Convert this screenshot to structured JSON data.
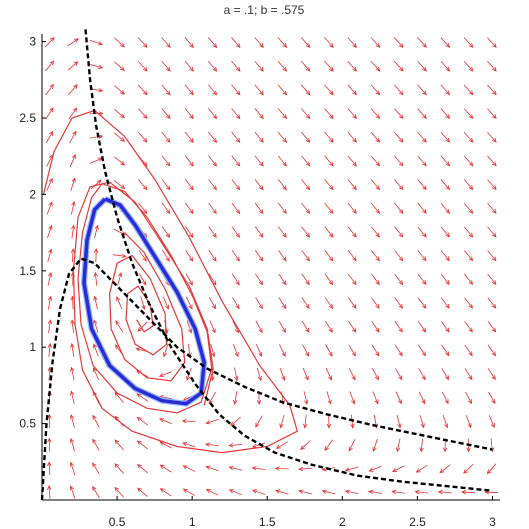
{
  "chart_data": {
    "type": "line",
    "title": "a = .1;   b = .575",
    "xlim": [
      0,
      3.05
    ],
    "ylim": [
      0,
      3.05
    ],
    "x_ticks": [
      {
        "value": 0.5,
        "label": "0.5"
      },
      {
        "value": 1,
        "label": "1"
      },
      {
        "value": 1.5,
        "label": "1.5"
      },
      {
        "value": 2,
        "label": "2"
      },
      {
        "value": 2.5,
        "label": "2.5"
      },
      {
        "value": 3,
        "label": "3"
      }
    ],
    "y_ticks": [
      {
        "value": 0.5,
        "label": "0.5"
      },
      {
        "value": 1,
        "label": "1"
      },
      {
        "value": 1.5,
        "label": "1.5"
      },
      {
        "value": 2,
        "label": "2"
      },
      {
        "value": 2.5,
        "label": "2.5"
      },
      {
        "value": 3,
        "label": "3"
      }
    ],
    "grid": false,
    "colors": {
      "field": "#e8302f",
      "trajectory": "#e23a3a",
      "limit_cycle": "#2b2bd6",
      "limit_cycle_edge": "#8fb4ff",
      "nullcline": "#000000"
    },
    "series": [
      {
        "role": "nullcline-1",
        "style": "dashed",
        "points": [
          [
            0.29,
            3.08
          ],
          [
            0.32,
            2.75
          ],
          [
            0.36,
            2.45
          ],
          [
            0.42,
            2.15
          ],
          [
            0.5,
            1.85
          ],
          [
            0.6,
            1.55
          ],
          [
            0.72,
            1.27
          ],
          [
            0.86,
            1.0
          ],
          [
            1.02,
            0.76
          ],
          [
            1.18,
            0.56
          ],
          [
            1.35,
            0.42
          ],
          [
            1.55,
            0.31
          ],
          [
            1.8,
            0.23
          ],
          [
            2.1,
            0.16
          ],
          [
            2.4,
            0.12
          ],
          [
            2.7,
            0.09
          ],
          [
            3.0,
            0.06
          ]
        ]
      },
      {
        "role": "nullcline-2",
        "style": "dashed",
        "points": [
          [
            0.0,
            0.0
          ],
          [
            0.03,
            0.5
          ],
          [
            0.07,
            0.9
          ],
          [
            0.12,
            1.25
          ],
          [
            0.18,
            1.48
          ],
          [
            0.26,
            1.58
          ],
          [
            0.35,
            1.55
          ],
          [
            0.5,
            1.4
          ],
          [
            0.7,
            1.2
          ],
          [
            0.9,
            1.0
          ],
          [
            1.1,
            0.86
          ],
          [
            1.35,
            0.74
          ],
          [
            1.6,
            0.64
          ],
          [
            1.9,
            0.56
          ],
          [
            2.2,
            0.49
          ],
          [
            2.5,
            0.43
          ],
          [
            2.8,
            0.37
          ],
          [
            3.0,
            0.33
          ]
        ]
      },
      {
        "role": "limit-cycle",
        "style": "solid",
        "points": [
          [
            0.42,
            1.97
          ],
          [
            0.52,
            1.93
          ],
          [
            0.62,
            1.8
          ],
          [
            0.76,
            1.58
          ],
          [
            0.9,
            1.36
          ],
          [
            1.02,
            1.12
          ],
          [
            1.08,
            0.9
          ],
          [
            1.06,
            0.7
          ],
          [
            0.96,
            0.63
          ],
          [
            0.8,
            0.65
          ],
          [
            0.62,
            0.73
          ],
          [
            0.45,
            0.88
          ],
          [
            0.33,
            1.12
          ],
          [
            0.28,
            1.42
          ],
          [
            0.3,
            1.7
          ],
          [
            0.35,
            1.9
          ],
          [
            0.42,
            1.97
          ]
        ]
      },
      {
        "role": "trajectory-outer",
        "style": "solid",
        "points": [
          [
            0.01,
            2.0
          ],
          [
            0.08,
            2.28
          ],
          [
            0.2,
            2.5
          ],
          [
            0.35,
            2.55
          ],
          [
            0.55,
            2.38
          ],
          [
            0.75,
            2.1
          ],
          [
            0.98,
            1.72
          ],
          [
            1.2,
            1.3
          ],
          [
            1.45,
            0.88
          ],
          [
            1.65,
            0.62
          ],
          [
            1.7,
            0.45
          ],
          [
            1.5,
            0.35
          ],
          [
            1.2,
            0.31
          ],
          [
            0.9,
            0.35
          ],
          [
            0.6,
            0.45
          ],
          [
            0.4,
            0.6
          ],
          [
            0.27,
            0.85
          ],
          [
            0.22,
            1.15
          ],
          [
            0.21,
            1.5
          ],
          [
            0.24,
            1.85
          ],
          [
            0.32,
            2.05
          ],
          [
            0.45,
            2.08
          ],
          [
            0.62,
            1.95
          ],
          [
            0.8,
            1.68
          ],
          [
            0.98,
            1.4
          ],
          [
            1.1,
            1.12
          ],
          [
            1.14,
            0.86
          ],
          [
            1.08,
            0.62
          ]
        ]
      },
      {
        "role": "trajectory-middle",
        "style": "solid",
        "points": [
          [
            0.4,
            2.07
          ],
          [
            0.55,
            2.02
          ],
          [
            0.7,
            1.85
          ],
          [
            0.86,
            1.6
          ],
          [
            1.0,
            1.34
          ],
          [
            1.1,
            1.1
          ],
          [
            1.13,
            0.86
          ],
          [
            1.06,
            0.64
          ],
          [
            0.9,
            0.57
          ],
          [
            0.7,
            0.6
          ],
          [
            0.5,
            0.7
          ],
          [
            0.34,
            0.88
          ],
          [
            0.26,
            1.15
          ],
          [
            0.24,
            1.45
          ],
          [
            0.27,
            1.75
          ],
          [
            0.33,
            1.98
          ],
          [
            0.4,
            2.07
          ]
        ]
      },
      {
        "role": "trajectory-inner-spiral",
        "style": "solid",
        "points": [
          [
            0.55,
            1.75
          ],
          [
            0.68,
            1.62
          ],
          [
            0.82,
            1.38
          ],
          [
            0.93,
            1.12
          ],
          [
            0.95,
            0.9
          ],
          [
            0.86,
            0.78
          ],
          [
            0.7,
            0.8
          ],
          [
            0.55,
            0.92
          ],
          [
            0.46,
            1.12
          ],
          [
            0.45,
            1.35
          ],
          [
            0.5,
            1.55
          ],
          [
            0.6,
            1.6
          ],
          [
            0.72,
            1.45
          ],
          [
            0.82,
            1.22
          ],
          [
            0.83,
            1.02
          ],
          [
            0.74,
            0.95
          ],
          [
            0.62,
            1.02
          ],
          [
            0.56,
            1.18
          ],
          [
            0.57,
            1.35
          ],
          [
            0.64,
            1.4
          ],
          [
            0.72,
            1.28
          ],
          [
            0.74,
            1.14
          ],
          [
            0.68,
            1.1
          ],
          [
            0.63,
            1.18
          ]
        ]
      }
    ]
  }
}
